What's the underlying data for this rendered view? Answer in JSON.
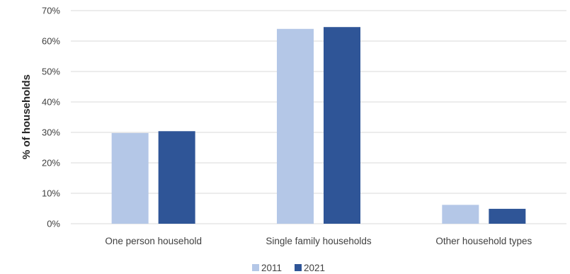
{
  "chart_data": {
    "type": "bar",
    "title": "",
    "xlabel": "",
    "ylabel": "% of households",
    "categories": [
      "One person household",
      "Single family households",
      "Other household types"
    ],
    "series": [
      {
        "name": "2011",
        "color": "#b4c7e7",
        "values": [
          29.8,
          64.0,
          6.2
        ]
      },
      {
        "name": "2021",
        "color": "#2f5597",
        "values": [
          30.4,
          64.6,
          4.9
        ]
      }
    ],
    "ylim": [
      0,
      70
    ],
    "yticks": [
      "0%",
      "10%",
      "20%",
      "30%",
      "40%",
      "50%",
      "60%",
      "70%"
    ],
    "ytick_values": [
      0,
      10,
      20,
      30,
      40,
      50,
      60,
      70
    ],
    "grid": true,
    "legend_position": "bottom"
  }
}
